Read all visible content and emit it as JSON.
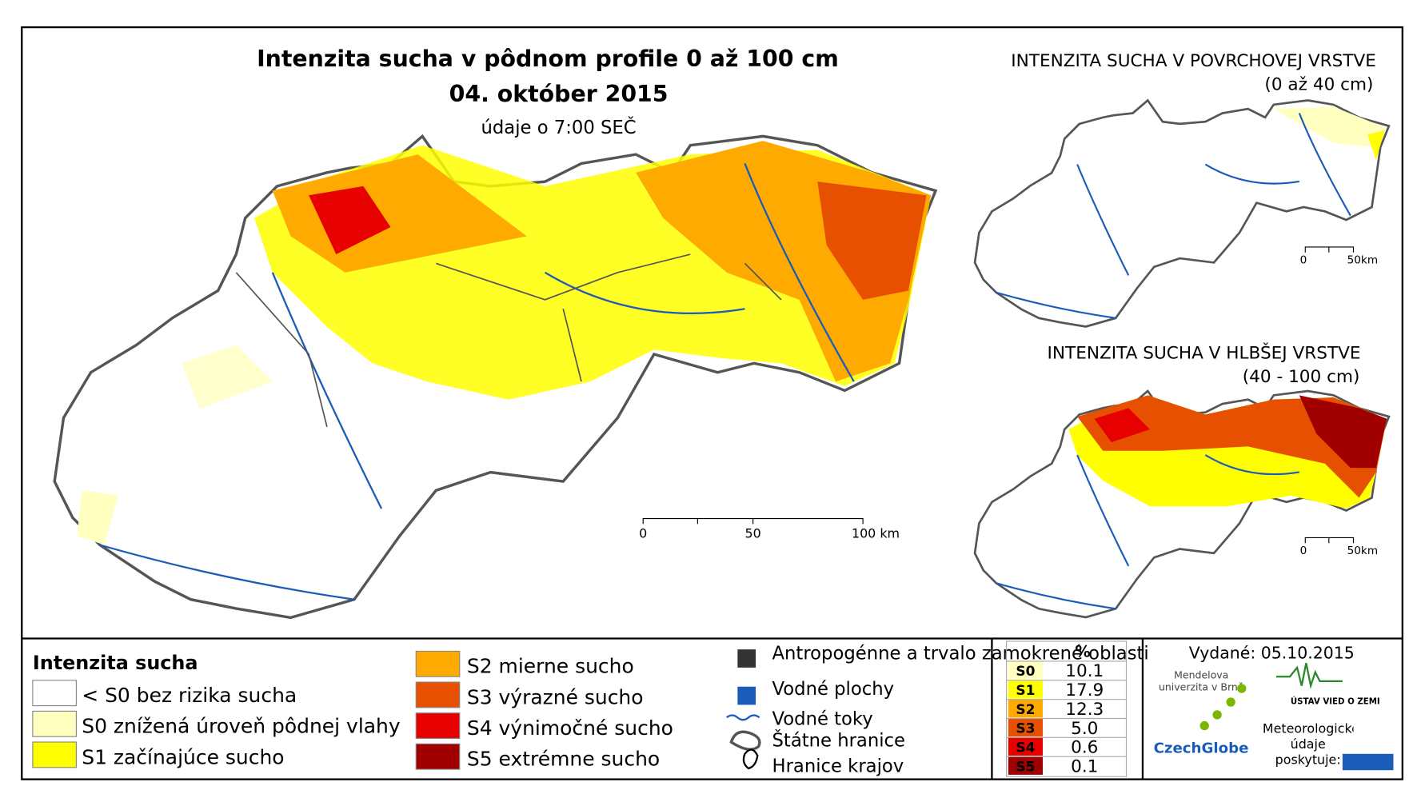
{
  "header": {
    "title": "Intenzita sucha v pôdnom profile 0 až 100 cm",
    "date": "04. október 2015",
    "subtitle": "údaje o 7:00 SEČ"
  },
  "insets": [
    {
      "title": "INTENZITA SUCHA V POVRCHOVEJ VRSTVE",
      "subtitle": "(0 až 40 cm)",
      "scale": [
        "0",
        "50km"
      ]
    },
    {
      "title": "INTENZITA SUCHA V HLBŠEJ VRSTVE",
      "subtitle": "(40 - 100 cm)",
      "scale": [
        "0",
        "50km"
      ]
    }
  ],
  "scale": [
    "0",
    "50",
    "100 km"
  ],
  "legend": {
    "title": "Intenzita sucha",
    "items": [
      {
        "label": "< S0 bez rizika sucha",
        "color": "#ffffff"
      },
      {
        "label": "S0 znížená úroveň pôdnej vlahy",
        "color": "#ffffc0"
      },
      {
        "label": "S1 začínajúce sucho",
        "color": "#ffff00"
      },
      {
        "label": "S2 mierne sucho",
        "color": "#ffaa00"
      },
      {
        "label": "S3 výrazné sucho",
        "color": "#e65000"
      },
      {
        "label": "S4 výnimočné sucho",
        "color": "#e60000"
      },
      {
        "label": "S5 extrémne sucho",
        "color": "#a00000"
      }
    ]
  },
  "layers": [
    "Antropogénne a trvalo zamokrené oblasti",
    "Vodné plochy",
    "Vodné toky",
    "Štátne hranice",
    "Hranice krajov"
  ],
  "table": {
    "header": "%",
    "rows": [
      [
        "S0",
        "10.1"
      ],
      [
        "S1",
        "17.9"
      ],
      [
        "S2",
        "12.3"
      ],
      [
        "S3",
        "5.0"
      ],
      [
        "S4",
        "0.6"
      ],
      [
        "S5",
        "0.1"
      ]
    ]
  },
  "footer": {
    "issued": "Vydané: 05.10.2015",
    "org1": "Mendelova univerzita v Brně",
    "org2": "CzechGlobe",
    "org3": "ÚSTAV VIED O ZEMI",
    "provider": "Meteorologické údaje poskytuje:"
  }
}
